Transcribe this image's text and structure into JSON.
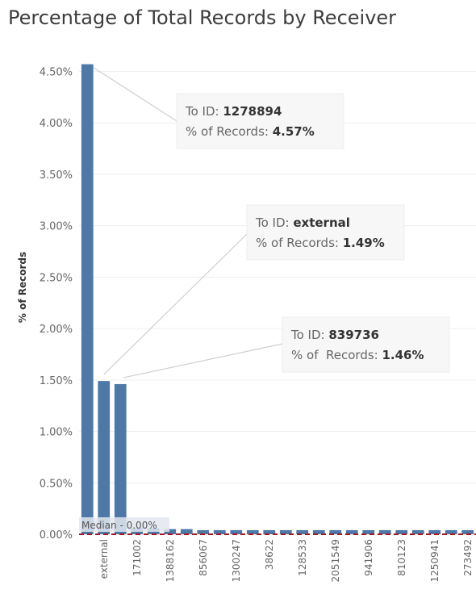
{
  "chart_data": {
    "type": "bar",
    "title": "Percentage of Total Records by Receiver",
    "ylabel": "% of Records",
    "ylim": [
      0,
      4.8
    ],
    "yticks": [
      "0.00%",
      "0.50%",
      "1.00%",
      "1.50%",
      "2.00%",
      "2.50%",
      "3.00%",
      "3.50%",
      "4.00%",
      "4.50%"
    ],
    "ytick_values": [
      0,
      0.5,
      1,
      1.5,
      2,
      2.5,
      3,
      3.5,
      4,
      4.5
    ],
    "values": [
      4.57,
      1.49,
      1.46,
      0.06,
      0.06,
      0.05,
      0.05,
      0.04,
      0.04,
      0.04,
      0.04,
      0.04,
      0.04,
      0.04,
      0.04,
      0.04,
      0.04,
      0.04,
      0.04,
      0.04,
      0.04,
      0.04,
      0.04,
      0.04
    ],
    "visible_x_labels": [
      {
        "index": 1,
        "label": "external"
      },
      {
        "index": 3,
        "label": "171002"
      },
      {
        "index": 5,
        "label": "1388162"
      },
      {
        "index": 7,
        "label": "856067"
      },
      {
        "index": 9,
        "label": "1300247"
      },
      {
        "index": 11,
        "label": "38622"
      },
      {
        "index": 13,
        "label": "128533"
      },
      {
        "index": 15,
        "label": "2051549"
      },
      {
        "index": 17,
        "label": "941906"
      },
      {
        "index": 19,
        "label": "810123"
      },
      {
        "index": 21,
        "label": "1250941"
      },
      {
        "index": 23,
        "label": "273492"
      }
    ],
    "bar_color": "#4e79a7",
    "reference_line": {
      "label": "Median - 0.00%",
      "value": 0,
      "color": "#a31a25"
    },
    "gridlines": true,
    "tooltips": [
      {
        "bar_index": 0,
        "id_label": "To ID: ",
        "id_value": "1278894",
        "pct_label": "% of Records: ",
        "pct_value": "4.57%"
      },
      {
        "bar_index": 1,
        "id_label": "To ID: ",
        "id_value": "external",
        "pct_label": "% of Records: ",
        "pct_value": "1.49%"
      },
      {
        "bar_index": 2,
        "id_label": "To ID: ",
        "id_value": "839736",
        "pct_label": "% of  Records: ",
        "pct_value": "1.46%"
      }
    ]
  }
}
